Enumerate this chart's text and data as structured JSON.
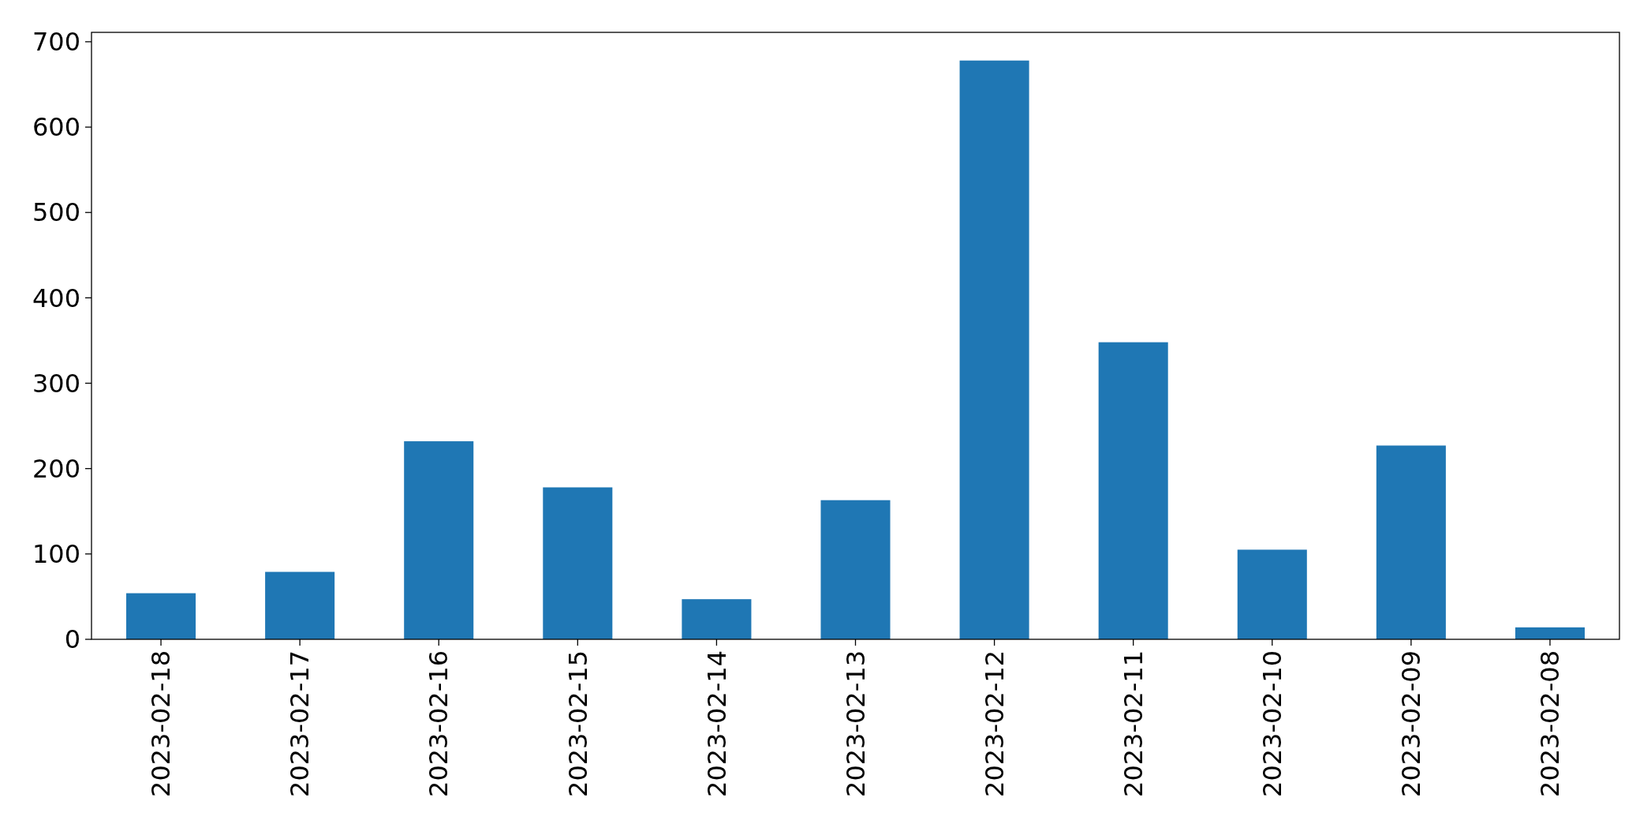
{
  "chart_data": {
    "type": "bar",
    "categories": [
      "2023-02-18",
      "2023-02-17",
      "2023-02-16",
      "2023-02-15",
      "2023-02-14",
      "2023-02-13",
      "2023-02-12",
      "2023-02-11",
      "2023-02-10",
      "2023-02-09",
      "2023-02-08"
    ],
    "values": [
      54,
      79,
      232,
      178,
      47,
      163,
      678,
      348,
      105,
      227,
      14
    ],
    "color": "#1f77b4",
    "ylim": [
      0,
      711
    ],
    "yticks": [
      0,
      100,
      200,
      300,
      400,
      500,
      600,
      700
    ],
    "grid": false
  }
}
